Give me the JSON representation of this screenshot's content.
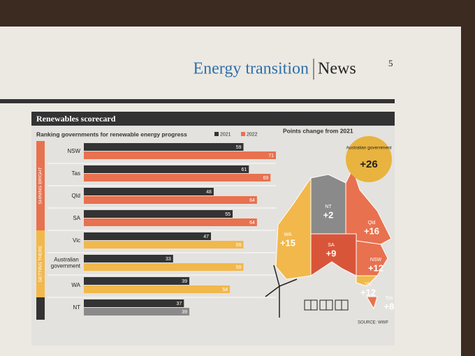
{
  "header": {
    "section": "Energy transition",
    "label": "News",
    "page": "5"
  },
  "chart_data": {
    "type": "bar",
    "orientation": "horizontal",
    "title": "Renewables scorecard",
    "subtitle": "Ranking governments for renewable energy progress",
    "categories": [
      "NSW",
      "Tas",
      "Qld",
      "SA",
      "Vic",
      "Australian government",
      "WA",
      "NT"
    ],
    "series": [
      {
        "name": "2021",
        "color": "#333333",
        "values": [
          59,
          61,
          48,
          55,
          47,
          33,
          39,
          37
        ]
      },
      {
        "name": "2022",
        "color": "#e8714f",
        "colors": [
          "#e8714f",
          "#e8714f",
          "#e8714f",
          "#e8714f",
          "#f2b84b",
          "#f2b84b",
          "#f2b84b",
          "#8a8a8a"
        ],
        "values": [
          71,
          69,
          64,
          64,
          59,
          59,
          54,
          39
        ]
      }
    ],
    "groups": [
      {
        "label": "SHINING BRIGHT",
        "color": "#e8714f",
        "categories": [
          "NSW",
          "Tas",
          "Qld",
          "SA"
        ]
      },
      {
        "label": "GETTING THERE",
        "color": "#f2b84b",
        "categories": [
          "Vic",
          "Australian government",
          "WA"
        ]
      }
    ],
    "legend": "top-right"
  },
  "map": {
    "title": "Points change from 2021",
    "names": [
      "WA",
      "NT",
      "Qld",
      "SA",
      "NSW",
      "Vic",
      "Tas",
      "Australian government"
    ],
    "values": [
      15,
      2,
      16,
      9,
      12,
      12,
      8,
      26
    ],
    "value_labels": [
      "+15",
      "+2",
      "+16",
      "+9",
      "+12",
      "+12",
      "+8",
      "+26"
    ],
    "colors": [
      "#f2b84b",
      "#8a8a8a",
      "#e8714f",
      "#d9553a",
      "#e8714f",
      "#f2b84b",
      "#e8714f",
      "#e9b33f"
    ],
    "source": "SOURCE: WWF"
  }
}
